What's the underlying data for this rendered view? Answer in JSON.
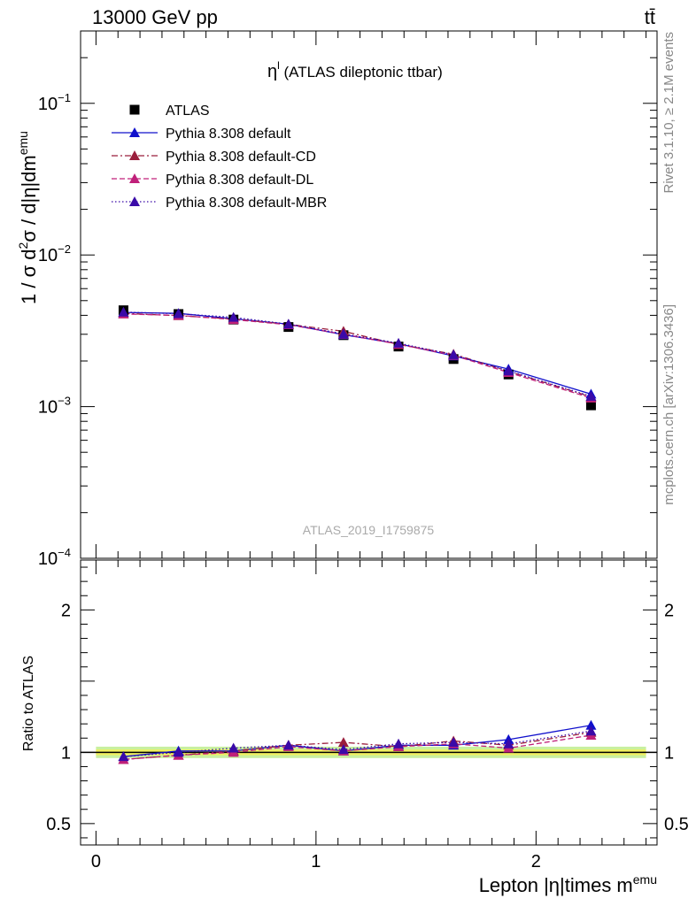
{
  "header": {
    "energy_label": "13000 GeV pp",
    "process_label": "tt̄"
  },
  "side_labels": {
    "rivet": "Rivet 3.1.10, ≥ 2.1M events",
    "mcplots": "mcplots.cern.ch [arXiv:1306.3436]"
  },
  "chart_data": [
    {
      "type": "line",
      "title_main": "η",
      "title_sup": "l",
      "title_rest": " (ATLAS dileptonic ttbar)",
      "analysis_label": "ATLAS_2019_I1759875",
      "ylabel_parts": {
        "a": "1 / σ  d",
        "b": "2",
        "c": "σ / d|η|dm",
        "d": "emu"
      },
      "yscale": "log",
      "ylim": [
        0.0001,
        0.3
      ],
      "xlim": [
        -0.07,
        2.55
      ],
      "y_tick_labels": [
        {
          "value": 0.1,
          "base": "10",
          "exp": "−1"
        },
        {
          "value": 0.01,
          "base": "10",
          "exp": "−2"
        },
        {
          "value": 0.001,
          "base": "10",
          "exp": "−3"
        },
        {
          "value": 0.0001,
          "base": "10",
          "exp": "−4"
        }
      ],
      "x": [
        0.125,
        0.375,
        0.625,
        0.875,
        1.125,
        1.375,
        1.625,
        1.875,
        2.25
      ],
      "data": {
        "name": "ATLAS",
        "color": "#000000",
        "values": [
          0.00432,
          0.00408,
          0.00375,
          0.00335,
          0.00296,
          0.00249,
          0.00206,
          0.00163,
          0.00102
        ]
      },
      "series": [
        {
          "name": "Pythia 8.308 default",
          "color": "#1010cc",
          "dash": "",
          "values": [
            0.00418,
            0.00412,
            0.0038,
            0.0035,
            0.00298,
            0.0026,
            0.00216,
            0.00177,
            0.00121
          ]
        },
        {
          "name": "Pythia 8.308 default-CD",
          "color": "#9a1e3c",
          "dash": "7,3,2,3",
          "values": [
            0.00412,
            0.00398,
            0.00378,
            0.00349,
            0.00314,
            0.00257,
            0.00222,
            0.00171,
            0.00116
          ]
        },
        {
          "name": "Pythia 8.308 default-DL",
          "color": "#c0207a",
          "dash": "6,3",
          "values": [
            0.00408,
            0.004,
            0.00375,
            0.00347,
            0.003,
            0.00258,
            0.00218,
            0.00168,
            0.00114
          ]
        },
        {
          "name": "Pythia 8.308 default-MBR",
          "color": "#3a0aa8",
          "dash": "1.5,2.5",
          "values": [
            0.0042,
            0.0041,
            0.00388,
            0.0035,
            0.00302,
            0.00262,
            0.0022,
            0.00172,
            0.00117
          ]
        }
      ]
    },
    {
      "type": "line",
      "ylabel": "Ratio to ATLAS",
      "xlabel_parts": {
        "a": "Lepton |η|times m",
        "b": "emu"
      },
      "ylim": [
        0.35,
        2.35
      ],
      "xlim": [
        -0.07,
        2.55
      ],
      "y_tick_labels": [
        {
          "value": 2,
          "text": "2"
        },
        {
          "value": 1,
          "text": "1"
        },
        {
          "value": 0.5,
          "text": "0.5"
        }
      ],
      "x_tick_labels": [
        {
          "value": 0,
          "text": "0"
        },
        {
          "value": 1,
          "text": "1"
        },
        {
          "value": 2,
          "text": "2"
        }
      ],
      "band": {
        "inner": [
          0.98,
          1.02
        ],
        "outer": [
          0.96,
          1.04
        ],
        "inner_color": "#f0f060",
        "outer_color": "#c8f0a0"
      },
      "x": [
        0.125,
        0.375,
        0.625,
        0.875,
        1.125,
        1.375,
        1.625,
        1.875,
        2.25
      ],
      "series": [
        {
          "name": "Pythia 8.308 default",
          "color": "#1010cc",
          "dash": "",
          "values": [
            0.97,
            1.01,
            1.01,
            1.05,
            1.01,
            1.05,
            1.05,
            1.09,
            1.19
          ]
        },
        {
          "name": "Pythia 8.308 default-CD",
          "color": "#9a1e3c",
          "dash": "7,3,2,3",
          "values": [
            0.95,
            0.98,
            1.01,
            1.05,
            1.07,
            1.04,
            1.08,
            1.05,
            1.14
          ]
        },
        {
          "name": "Pythia 8.308 default-DL",
          "color": "#c0207a",
          "dash": "6,3",
          "values": [
            0.95,
            0.98,
            1.0,
            1.04,
            1.01,
            1.04,
            1.06,
            1.03,
            1.12
          ]
        },
        {
          "name": "Pythia 8.308 default-MBR",
          "color": "#3a0aa8",
          "dash": "1.5,2.5",
          "values": [
            0.97,
            1.0,
            1.03,
            1.05,
            1.02,
            1.06,
            1.07,
            1.06,
            1.15
          ]
        }
      ]
    }
  ]
}
